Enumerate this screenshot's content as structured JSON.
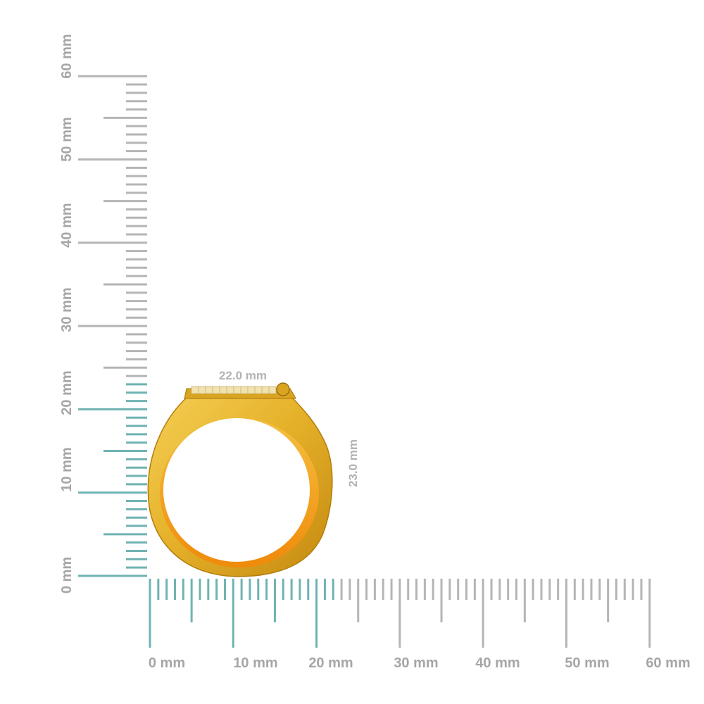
{
  "scale": {
    "unit": "mm",
    "horizontal_labels": [
      "0 mm",
      "10 mm",
      "20 mm",
      "30 mm",
      "40 mm",
      "50 mm",
      "60 mm"
    ],
    "vertical_labels": [
      "0 mm",
      "10 mm",
      "20 mm",
      "30 mm",
      "40 mm",
      "50 mm",
      "60 mm"
    ],
    "highlight_mm": {
      "horizontal": 22,
      "vertical": 23
    },
    "colors": {
      "tick": "#b5b5b5",
      "highlight": "#6fb3b3",
      "label": "#a6a6a6"
    }
  },
  "ring": {
    "width_label": "22.0 mm",
    "height_label": "23.0 mm",
    "width_mm": 22.0,
    "height_mm": 23.0,
    "colors": {
      "gold": "#e6b22a",
      "gold_dark": "#c98d13",
      "gold_inner": "#f2a114",
      "setting": "#f3e6b8"
    }
  }
}
